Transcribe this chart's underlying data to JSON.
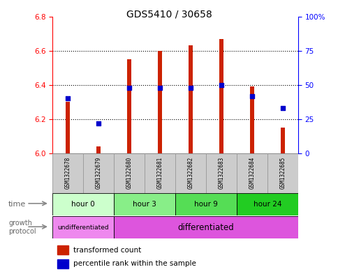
{
  "title": "GDS5410 / 30658",
  "samples": [
    "GSM1322678",
    "GSM1322679",
    "GSM1322680",
    "GSM1322681",
    "GSM1322682",
    "GSM1322683",
    "GSM1322684",
    "GSM1322685"
  ],
  "transformed_count": [
    6.3,
    6.04,
    6.55,
    6.6,
    6.63,
    6.67,
    6.39,
    6.15
  ],
  "percentile_rank": [
    40,
    22,
    48,
    48,
    48,
    50,
    42,
    33
  ],
  "bar_bottom": 6.0,
  "ylim_left": [
    6.0,
    6.8
  ],
  "ylim_right": [
    0,
    100
  ],
  "yticks_left": [
    6.0,
    6.2,
    6.4,
    6.6,
    6.8
  ],
  "ytick_labels_right": [
    "0",
    "25",
    "50",
    "75",
    "100%"
  ],
  "bar_color": "#CC2200",
  "dot_color": "#0000CC",
  "time_groups": [
    {
      "label": "hour 0",
      "start": 0,
      "end": 2,
      "color": "#CCFFCC"
    },
    {
      "label": "hour 3",
      "start": 2,
      "end": 4,
      "color": "#88EE88"
    },
    {
      "label": "hour 9",
      "start": 4,
      "end": 6,
      "color": "#55DD55"
    },
    {
      "label": "hour 24",
      "start": 6,
      "end": 8,
      "color": "#22CC22"
    }
  ],
  "protocol_groups": [
    {
      "label": "undifferentiated",
      "start": 0,
      "end": 2,
      "color": "#EE88EE"
    },
    {
      "label": "differentiated",
      "start": 2,
      "end": 8,
      "color": "#DD55DD"
    }
  ],
  "legend_red_label": "transformed count",
  "legend_blue_label": "percentile rank within the sample",
  "bar_color_red": "#CC2200",
  "dot_color_blue": "#0000CC",
  "sample_bg_color": "#CCCCCC",
  "sample_border_color": "#999999",
  "grid_dotted_color": "#000000"
}
